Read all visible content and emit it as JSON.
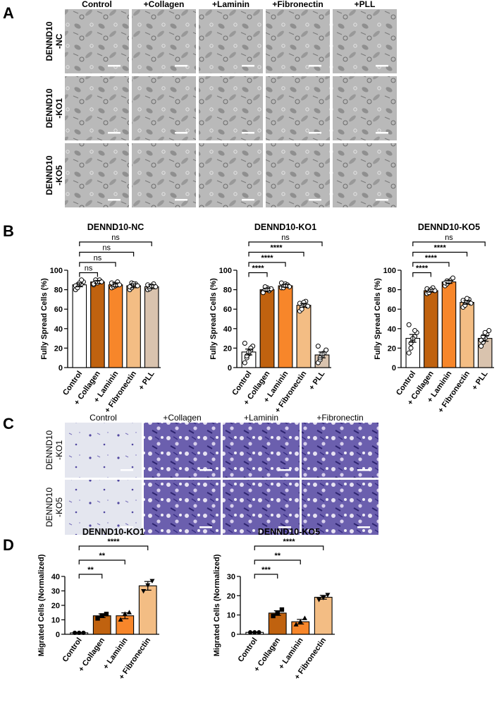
{
  "panels": {
    "A": "A",
    "B": "B",
    "C": "C",
    "D": "D"
  },
  "panel_a": {
    "columns": [
      "Control",
      "+Collagen",
      "+Laminin",
      "+Fibronectin",
      "+PLL"
    ],
    "rows": [
      "DENND10\n-NC",
      "DENND10\n-KO1",
      "DENND10\n-KO5"
    ]
  },
  "panel_c": {
    "columns": [
      "Control",
      "+Collagen",
      "+Laminin",
      "+Fibronectin"
    ],
    "rows": [
      "DENND10\n-KO1",
      "DENND10\n-KO5"
    ]
  },
  "colors": {
    "control": "#ffffff",
    "collagen": "#c0620f",
    "laminin": "#f7862a",
    "fibronectin": "#f3bd84",
    "pll": "#d9c3ae",
    "micro_bg": "#b8b8b8",
    "stain_bg": "#6e62b0"
  },
  "chart_data": [
    {
      "type": "bar",
      "panel": "B",
      "title": "DENND10-NC",
      "ylabel": "Fully Spread Cells (%)",
      "ylim": [
        0,
        100
      ],
      "yticks": [
        0,
        20,
        40,
        60,
        80,
        100
      ],
      "categories": [
        "Control",
        "+ Collagen",
        "+ Laminin",
        "+ Fibronectin",
        "+ PLL"
      ],
      "values": [
        85,
        88,
        85,
        84,
        83
      ],
      "errors": [
        2,
        1.5,
        2,
        2,
        2
      ],
      "points": [
        [
          80,
          83,
          85,
          86,
          88,
          84,
          82,
          87,
          90
        ],
        [
          85,
          87,
          89,
          90,
          88,
          86,
          90,
          87
        ],
        [
          82,
          84,
          86,
          88,
          85,
          87,
          83,
          84
        ],
        [
          80,
          82,
          85,
          86,
          84,
          83,
          87,
          86
        ],
        [
          80,
          82,
          84,
          86,
          83,
          85,
          81,
          84
        ]
      ],
      "comparisons": [
        {
          "from": 0,
          "to": 1,
          "label": "ns"
        },
        {
          "from": 0,
          "to": 2,
          "label": "ns"
        },
        {
          "from": 0,
          "to": 3,
          "label": "ns"
        },
        {
          "from": 0,
          "to": 4,
          "label": "ns"
        }
      ]
    },
    {
      "type": "bar",
      "panel": "B",
      "title": "DENND10-KO1",
      "ylabel": "Fully Spread Cells (%)",
      "ylim": [
        0,
        100
      ],
      "yticks": [
        0,
        20,
        40,
        60,
        80,
        100
      ],
      "categories": [
        "Control",
        "+ Collagen",
        "+ Laminin",
        "+ Fibronectin",
        "+ PLL"
      ],
      "values": [
        16,
        80,
        84,
        64,
        13
      ],
      "errors": [
        3,
        1.5,
        1.5,
        2,
        3
      ],
      "points": [
        [
          5,
          10,
          14,
          18,
          22,
          25,
          12,
          16,
          20
        ],
        [
          78,
          80,
          82,
          79,
          81,
          77,
          83,
          80
        ],
        [
          82,
          84,
          86,
          85,
          83,
          87,
          82,
          84
        ],
        [
          58,
          62,
          65,
          68,
          63,
          66,
          60,
          67
        ],
        [
          5,
          8,
          12,
          15,
          18,
          22,
          10,
          14
        ]
      ],
      "comparisons": [
        {
          "from": 0,
          "to": 1,
          "label": "****"
        },
        {
          "from": 0,
          "to": 2,
          "label": "****"
        },
        {
          "from": 0,
          "to": 3,
          "label": "****"
        },
        {
          "from": 0,
          "to": 4,
          "label": "ns"
        }
      ]
    },
    {
      "type": "bar",
      "panel": "B",
      "title": "DENND10-KO5",
      "ylabel": "Fully Spread Cells (%)",
      "ylim": [
        0,
        100
      ],
      "yticks": [
        0,
        20,
        40,
        60,
        80,
        100
      ],
      "categories": [
        "Control",
        "+ Collagen",
        "+ Laminin",
        "+ Fibronectin",
        "+ PLL"
      ],
      "values": [
        30,
        79,
        88,
        67,
        30
      ],
      "errors": [
        4,
        1.5,
        1.5,
        2,
        3
      ],
      "points": [
        [
          15,
          20,
          28,
          32,
          36,
          44,
          25,
          30,
          38
        ],
        [
          76,
          78,
          80,
          82,
          79,
          81,
          77,
          80
        ],
        [
          84,
          86,
          88,
          90,
          92,
          87,
          89,
          88
        ],
        [
          62,
          65,
          68,
          70,
          66,
          69,
          64,
          71
        ],
        [
          22,
          26,
          30,
          34,
          38,
          28,
          32,
          36
        ]
      ],
      "comparisons": [
        {
          "from": 0,
          "to": 1,
          "label": "****"
        },
        {
          "from": 0,
          "to": 2,
          "label": "****"
        },
        {
          "from": 0,
          "to": 3,
          "label": "****"
        },
        {
          "from": 0,
          "to": 4,
          "label": "ns"
        }
      ]
    },
    {
      "type": "bar",
      "panel": "D",
      "title": "DENND10-KO1",
      "ylabel": "Migrated Cells (Normalized)",
      "ylim": [
        0,
        40
      ],
      "yticks": [
        0,
        10,
        20,
        30,
        40
      ],
      "categories": [
        "Control",
        "+ Collagen",
        "+ Laminin",
        "+ Fibronectin"
      ],
      "values": [
        1,
        12.8,
        12.8,
        33.5
      ],
      "errors": [
        0.1,
        1.3,
        2.0,
        3.0
      ],
      "points": [
        [
          1,
          1,
          1
        ],
        [
          11,
          13,
          14
        ],
        [
          10,
          14,
          15
        ],
        [
          30,
          34,
          37
        ]
      ],
      "markers": [
        "circle",
        "square",
        "triangle-up",
        "triangle-down"
      ],
      "comparisons": [
        {
          "from": 0,
          "to": 1,
          "label": "**"
        },
        {
          "from": 0,
          "to": 2,
          "label": "**"
        },
        {
          "from": 0,
          "to": 3,
          "label": "****"
        }
      ]
    },
    {
      "type": "bar",
      "panel": "D",
      "title": "DENND10-KO5",
      "ylabel": "Migrated Cells (Normalized)",
      "ylim": [
        0,
        30
      ],
      "yticks": [
        0,
        10,
        20,
        30
      ],
      "categories": [
        "Control",
        "+ Collagen",
        "+ Laminin",
        "+ Fibronectin"
      ],
      "values": [
        1,
        11,
        6.5,
        19.2
      ],
      "errors": [
        0.1,
        1.2,
        1.2,
        1.0
      ],
      "points": [
        [
          1,
          1,
          1
        ],
        [
          9.5,
          11,
          12.8
        ],
        [
          5,
          6.5,
          8.3
        ],
        [
          18,
          19,
          20.5
        ]
      ],
      "markers": [
        "circle",
        "square",
        "triangle-up",
        "triangle-down"
      ],
      "comparisons": [
        {
          "from": 0,
          "to": 1,
          "label": "***"
        },
        {
          "from": 0,
          "to": 2,
          "label": "**"
        },
        {
          "from": 0,
          "to": 3,
          "label": "****"
        }
      ]
    }
  ]
}
